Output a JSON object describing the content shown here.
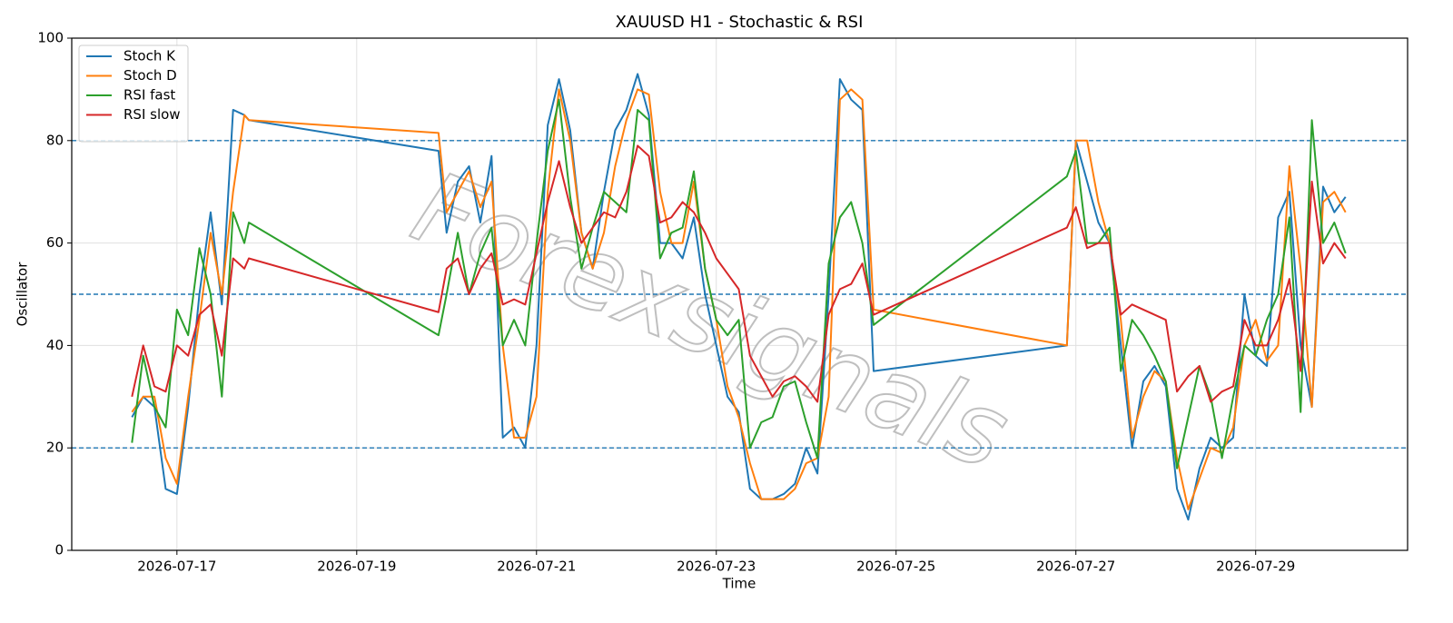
{
  "chart_data": {
    "type": "line",
    "title": "XAUUSD H1 - Stochastic & RSI",
    "x_label": "Time",
    "y_label": "Oscillator",
    "watermark": "Forexsignals",
    "x": [
      20650.5,
      20650.625,
      20650.75,
      20650.875,
      20651,
      20651.125,
      20651.25,
      20651.375,
      20651.5,
      20651.625,
      20651.75,
      20651.8,
      20653.91,
      20654,
      20654.125,
      20654.25,
      20654.375,
      20654.5,
      20654.625,
      20654.75,
      20654.875,
      20655,
      20655.125,
      20655.25,
      20655.375,
      20655.5,
      20655.625,
      20655.75,
      20655.875,
      20656,
      20656.125,
      20656.25,
      20656.375,
      20656.5,
      20656.625,
      20656.75,
      20656.875,
      20657,
      20657.125,
      20657.25,
      20657.375,
      20657.5,
      20657.625,
      20657.75,
      20657.875,
      20658,
      20658.125,
      20658.25,
      20658.375,
      20658.5,
      20658.625,
      20658.75,
      20660.9,
      20661,
      20661.125,
      20661.25,
      20661.375,
      20661.5,
      20661.625,
      20661.75,
      20661.875,
      20662,
      20662.125,
      20662.25,
      20662.375,
      20662.5,
      20662.625,
      20662.75,
      20662.875,
      20663,
      20663.125,
      20663.25,
      20663.375,
      20663.5,
      20663.625,
      20663.75,
      20663.875,
      20664
    ],
    "series": [
      {
        "name": "Stoch K",
        "color": "#1f77b4",
        "values": [
          26,
          30,
          28,
          12,
          11,
          28,
          50,
          66,
          48,
          86,
          85,
          84,
          78,
          62,
          72,
          75,
          64,
          77,
          22,
          24,
          20,
          40,
          83,
          92,
          82,
          62,
          55,
          70,
          82,
          86,
          93,
          85,
          60,
          60,
          57,
          65,
          50,
          40,
          30,
          27,
          12,
          10,
          10,
          11,
          13,
          20,
          15,
          50,
          92,
          88,
          86,
          35,
          40,
          80,
          72,
          64,
          60,
          40,
          20,
          33,
          36,
          32,
          12,
          6,
          16,
          22,
          20,
          22,
          50,
          38,
          36,
          65,
          70,
          40,
          28,
          71,
          66,
          69
        ]
      },
      {
        "name": "Stoch D",
        "color": "#ff7f0e",
        "values": [
          27,
          30,
          30,
          18,
          13,
          30,
          45,
          62,
          50,
          70,
          85,
          84,
          81.5,
          66,
          70,
          74,
          67,
          72,
          40,
          22,
          22,
          30,
          70,
          90,
          80,
          62,
          55,
          62,
          75,
          84,
          90,
          89,
          70,
          60,
          60,
          72,
          55,
          45,
          32,
          26,
          17,
          10,
          10,
          10,
          12,
          17,
          18,
          30,
          88,
          90,
          88,
          47,
          40,
          80,
          80,
          68,
          60,
          45,
          22,
          30,
          35,
          33,
          18,
          8,
          14,
          20,
          19,
          24,
          40,
          45,
          37,
          40,
          75,
          55,
          28,
          68,
          70,
          66
        ]
      },
      {
        "name": "RSI fast",
        "color": "#2ca02c",
        "values": [
          21,
          38,
          28,
          24,
          47,
          42,
          59,
          50,
          30,
          66,
          60,
          64,
          42,
          50,
          62,
          50,
          58,
          63,
          40,
          45,
          40,
          60,
          78,
          88,
          69,
          55,
          63,
          70,
          68,
          66,
          86,
          84,
          57,
          62,
          63,
          74,
          55,
          45,
          42,
          45,
          20,
          25,
          26,
          32,
          33,
          25,
          18,
          56,
          65,
          68,
          60,
          44,
          73,
          78,
          60,
          60,
          63,
          35,
          45,
          42,
          38,
          33,
          16,
          26,
          36,
          30,
          18,
          30,
          40,
          38,
          45,
          50,
          65,
          27,
          84,
          60,
          64,
          58
        ]
      },
      {
        "name": "RSI slow",
        "color": "#d62728",
        "values": [
          30,
          40,
          32,
          31,
          40,
          38,
          46,
          48,
          38,
          57,
          55,
          57,
          46.5,
          55,
          57,
          50,
          55,
          58,
          48,
          49,
          48,
          58,
          68,
          76,
          67,
          60,
          63,
          66,
          65,
          70,
          79,
          77,
          64,
          65,
          68,
          66,
          62,
          57,
          54,
          51,
          38,
          34,
          30,
          33,
          34,
          32,
          29,
          46,
          51,
          52,
          56,
          46,
          63,
          67,
          59,
          60,
          60,
          46,
          48,
          47,
          46,
          45,
          31,
          34,
          36,
          29,
          31,
          32,
          45,
          40,
          40,
          45,
          53,
          35,
          72,
          56,
          60,
          57
        ]
      }
    ],
    "xlim": [
      20649.83,
      20664.69
    ],
    "xticks": [
      {
        "value": 20651,
        "label": "2026-07-17"
      },
      {
        "value": 20653,
        "label": "2026-07-19"
      },
      {
        "value": 20655,
        "label": "2026-07-21"
      },
      {
        "value": 20657,
        "label": "2026-07-23"
      },
      {
        "value": 20659,
        "label": "2026-07-25"
      },
      {
        "value": 20661,
        "label": "2026-07-27"
      },
      {
        "value": 20663,
        "label": "2026-07-29"
      }
    ],
    "ylim": [
      0,
      100
    ],
    "yticks": [
      0,
      20,
      40,
      60,
      80,
      100
    ],
    "hlines": [
      20,
      50,
      80
    ],
    "hline_color": "#1f77b4",
    "grid": true,
    "legend": "upper left"
  }
}
